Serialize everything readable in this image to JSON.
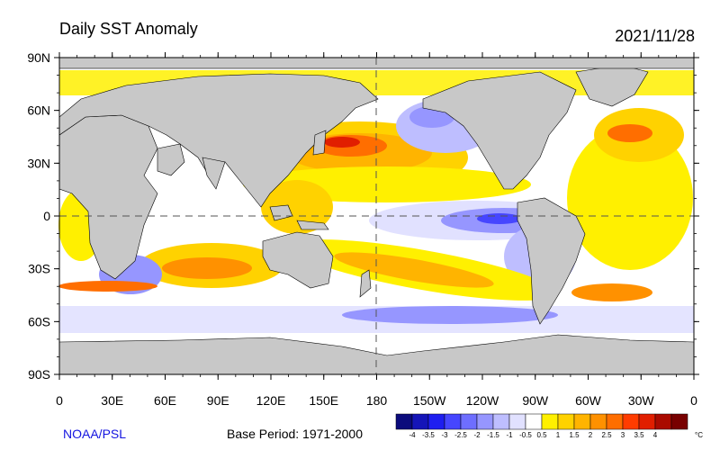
{
  "header": {
    "title": "Daily SST Anomaly",
    "date": "2021/11/28"
  },
  "footer": {
    "credit": "NOAA/PSL",
    "base_period": "Base Period: 1971-2000"
  },
  "map": {
    "projection": "equirectangular",
    "central_longitude": 180,
    "lat_ticks": [
      "90N",
      "60N",
      "30N",
      "0",
      "30S",
      "60S",
      "90S"
    ],
    "lon_ticks": [
      "0",
      "30E",
      "60E",
      "90E",
      "120E",
      "150E",
      "180",
      "150W",
      "120W",
      "90W",
      "60W",
      "30W",
      "0"
    ],
    "land_color": "#c8c8c8",
    "ocean_neutral_color": "#ffffff"
  },
  "colorbar": {
    "unit": "°C",
    "colors": [
      "#0b0b7c",
      "#1515b8",
      "#1e1ef0",
      "#4646ff",
      "#6e6eff",
      "#9696ff",
      "#bebeff",
      "#e1e1ff",
      "#ffffff",
      "#fff000",
      "#ffd200",
      "#ffb400",
      "#ff9100",
      "#ff6e00",
      "#ff3c00",
      "#e11e00",
      "#aa0a00",
      "#780000"
    ],
    "labels": [
      "-4",
      "-3.5",
      "-3",
      "-2.5",
      "-2",
      "-1.5",
      "-1",
      "-0.5",
      "0.5",
      "1",
      "1.5",
      "2",
      "2.5",
      "3",
      "3.5",
      "4"
    ]
  }
}
